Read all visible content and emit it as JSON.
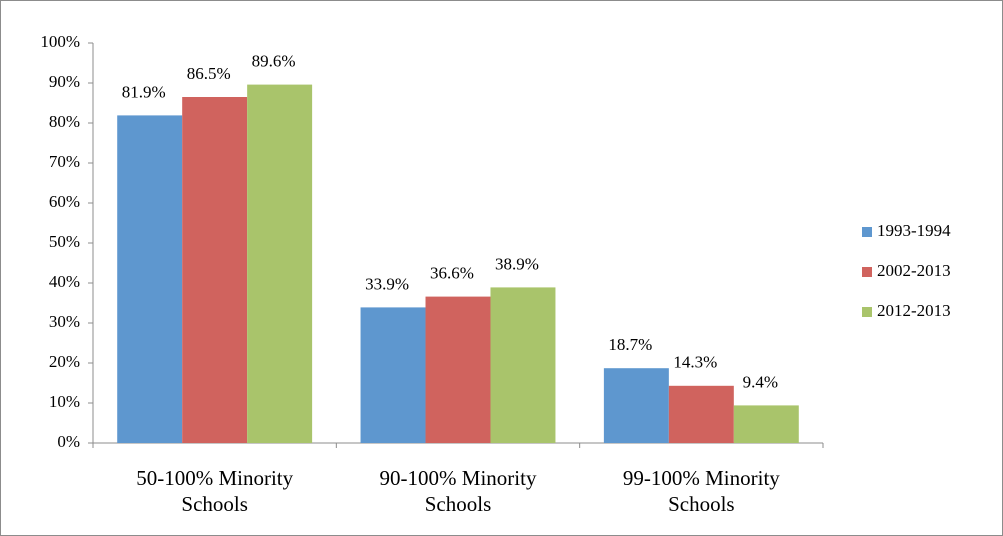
{
  "chart_data": {
    "type": "bar",
    "categories": [
      "50-100% Minority Schools",
      "90-100% Minority Schools",
      "99-100% Minority Schools"
    ],
    "series": [
      {
        "name": "1993-1994",
        "color": "#5e97cf",
        "values": [
          81.9,
          33.9,
          18.7
        ],
        "value_labels": [
          "81.9%",
          "33.9%",
          "18.7%"
        ]
      },
      {
        "name": "2002-2013",
        "color": "#d0635e",
        "values": [
          86.5,
          36.6,
          14.3
        ],
        "value_labels": [
          "86.5%",
          "36.6%",
          "14.3%"
        ]
      },
      {
        "name": "2012-2013",
        "color": "#a9c46b",
        "values": [
          89.6,
          38.9,
          9.4
        ],
        "value_labels": [
          "89.6%",
          "38.9%",
          "9.4%"
        ]
      }
    ],
    "ylim": [
      0,
      100
    ],
    "yticks": [
      {
        "value": 0,
        "label": "0%"
      },
      {
        "value": 10,
        "label": "10%"
      },
      {
        "value": 20,
        "label": "20%"
      },
      {
        "value": 30,
        "label": "30%"
      },
      {
        "value": 40,
        "label": "40%"
      },
      {
        "value": 50,
        "label": "50%"
      },
      {
        "value": 60,
        "label": "60%"
      },
      {
        "value": 70,
        "label": "70%"
      },
      {
        "value": 80,
        "label": "80%"
      },
      {
        "value": 90,
        "label": "90%"
      },
      {
        "value": 100,
        "label": "100%"
      }
    ],
    "grid": false,
    "legend": "right"
  }
}
